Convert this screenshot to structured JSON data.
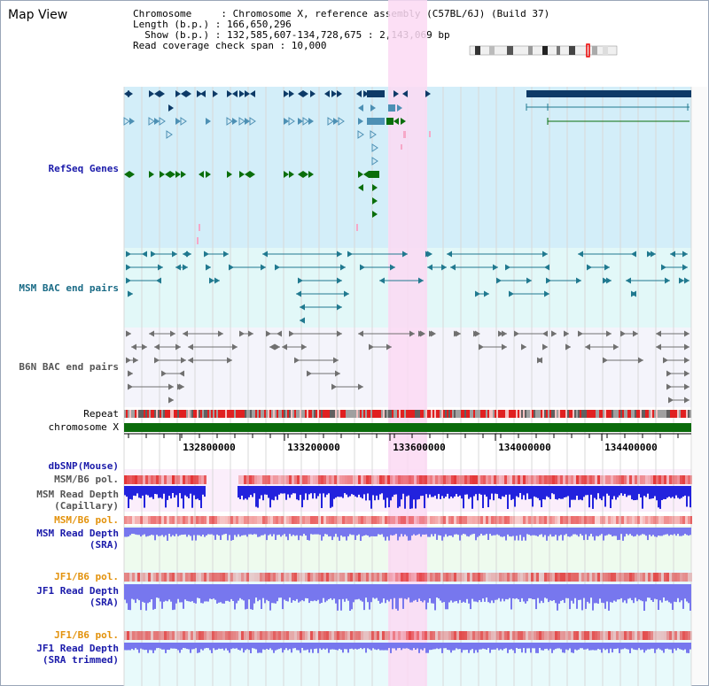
{
  "window_title": "Map View",
  "info": {
    "chromosome_line": "Chromosome     : Chromosome X, reference assembly (C57BL/6J) (Build 37)",
    "length_line": "Length (b.p.) : 166,650,296",
    "show_line": "  Show (b.p.) : 132,585,607-134,728,675 : 2,143,069 bp",
    "coverage_line": "Read coverage check span : 10,000"
  },
  "tracks": {
    "refseq": "RefSeq Genes",
    "msm_bac": "MSM BAC end pairs",
    "b6n_bac": "B6N BAC end pairs",
    "repeat": "Repeat",
    "chromosome": "chromosome X",
    "dbsnp": "dbSNP(Mouse)",
    "msm_b6_pol_1": "MSM/B6 pol.",
    "msm_depth_cap_1": "MSM Read Depth",
    "msm_depth_cap_2": "(Capillary)",
    "msm_b6_pol_2": "MSM/B6 pol.",
    "msm_depth_sra_1": "MSM Read Depth",
    "msm_depth_sra_2": "(SRA)",
    "jf1_pol_1": "JF1/B6 pol.",
    "jf1_depth_1": "JF1 Read Depth",
    "jf1_depth_2": "(SRA)",
    "jf1_pol_2": "JF1/B6 pol.",
    "jf1_trim_1": "JF1 Read Depth",
    "jf1_trim_2": "(SRA trimmed)"
  },
  "axis": {
    "ticks": [
      "132800000",
      "133200000",
      "133600000",
      "134000000",
      "134400000"
    ]
  },
  "colors": {
    "refseq_bg": "#d3eef9",
    "msm_bac_bg": "#e2f8f8",
    "b6n_bac_bg": "#f4f4fb",
    "highlight": "#fbd9f3",
    "gene_dark": "#0d3a67",
    "gene_mid": "#4d90b4",
    "gene_green": "#0a6e0a",
    "bac_teal": "#20798f",
    "bac_gray": "#707070",
    "repeat_red": "#e02020",
    "chrom_green": "#0b6b0b",
    "depth_blue": "#2222dd",
    "depth_blue_light": "#7777ee",
    "label_blue": "#1a1aaa",
    "label_gray": "#444444",
    "label_orange": "#e3920c",
    "label_teal": "#1a6b86"
  }
}
